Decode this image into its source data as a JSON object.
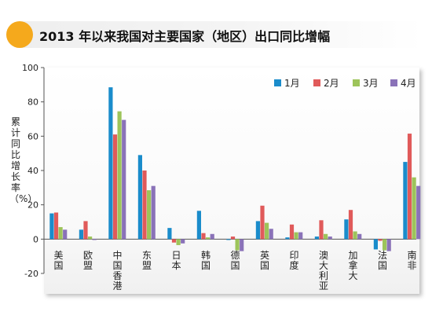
{
  "header": {
    "title": "2013 年以来我国对主要国家（地区）出口同比增幅"
  },
  "chart_data": {
    "type": "bar",
    "title": "2013 年以来我国对主要国家（地区）出口同比增幅",
    "ylabel": "累计同比增长率（%）",
    "xlabel": "",
    "ylim": [
      -20,
      100
    ],
    "yticks": [
      -20,
      0,
      20,
      40,
      60,
      80,
      100
    ],
    "grid": false,
    "legend_position": "top-right",
    "categories": [
      "美国",
      "欧盟",
      "中国香港",
      "东盟",
      "日本",
      "韩国",
      "德国",
      "英国",
      "印度",
      "澳大利亚",
      "加拿大",
      "法国",
      "南非"
    ],
    "series": [
      {
        "name": "1月",
        "color": "#1a8ccb",
        "values": [
          15,
          5.5,
          88.5,
          49,
          6.5,
          16.5,
          -0.5,
          10.5,
          1,
          1.5,
          11.5,
          -6,
          45
        ]
      },
      {
        "name": "2月",
        "color": "#e05a5a",
        "values": [
          15.5,
          10.5,
          61,
          40,
          -2,
          3.5,
          1.5,
          19.5,
          8.5,
          11,
          17,
          -1,
          61.5
        ]
      },
      {
        "name": "3月",
        "color": "#9dc45a",
        "values": [
          7,
          1.5,
          74.5,
          28.5,
          -3.5,
          1,
          -6.5,
          9.5,
          4,
          3,
          4.5,
          -6.5,
          36
        ]
      },
      {
        "name": "4月",
        "color": "#8a72b8",
        "values": [
          5.5,
          -0.5,
          69.5,
          31,
          -2.5,
          3,
          -7,
          6,
          4,
          1.5,
          3,
          -7,
          31
        ]
      }
    ]
  }
}
